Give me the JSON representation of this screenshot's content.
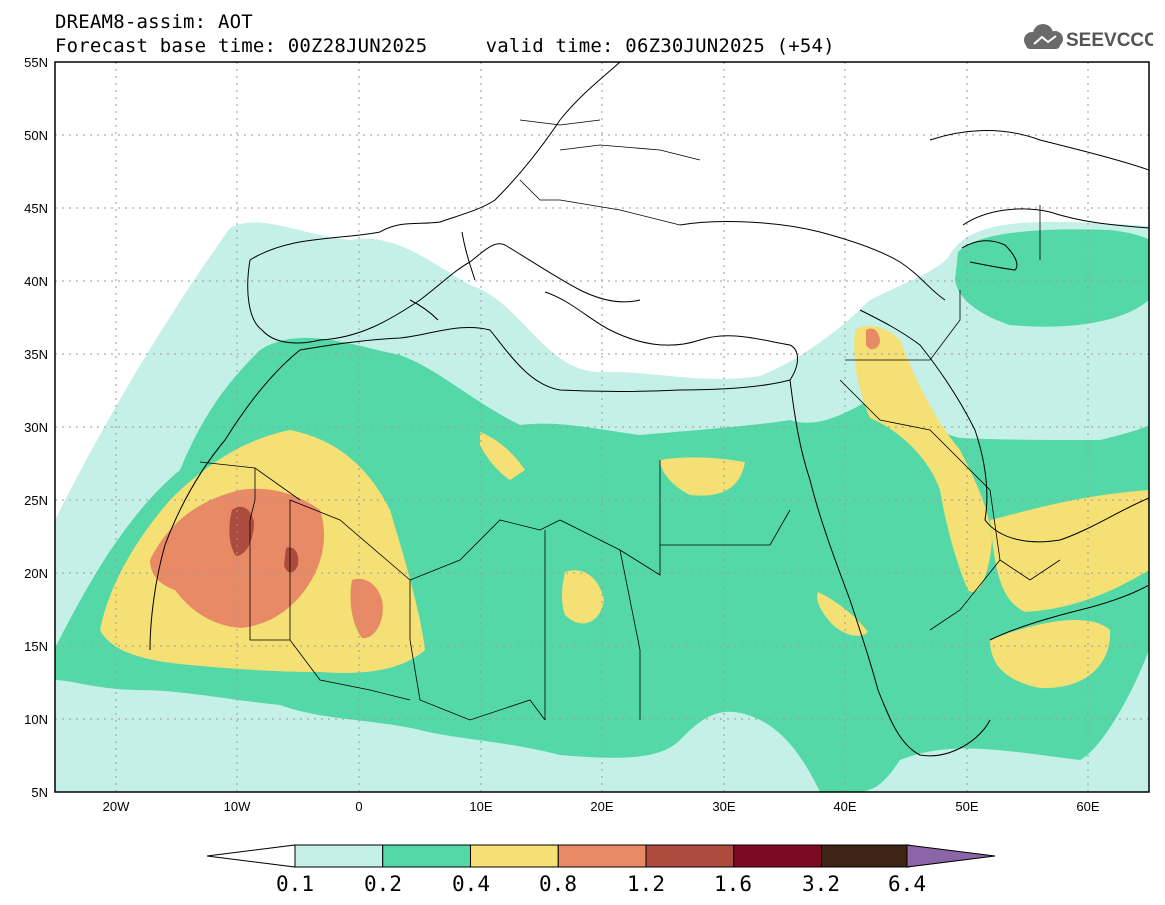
{
  "header": {
    "line1": "DREAM8-assim: AOT",
    "line2": "Forecast base time: 00Z28JUN2025     valid time: 06Z30JUN2025 (+54)",
    "logo_text": "SEEVCCC"
  },
  "map": {
    "lon_range": [
      -25,
      65
    ],
    "lat_range": [
      5,
      55
    ],
    "lat_ticks": [
      "55N",
      "50N",
      "45N",
      "40N",
      "35N",
      "30N",
      "25N",
      "20N",
      "15N",
      "10N",
      "5N"
    ],
    "lon_ticks": [
      "20W",
      "10W",
      "0",
      "10E",
      "20E",
      "30E",
      "40E",
      "50E",
      "60E"
    ]
  },
  "colorbar": {
    "labels": [
      "0.1",
      "0.2",
      "0.4",
      "0.8",
      "1.2",
      "1.6",
      "3.2",
      "6.4"
    ],
    "colors": [
      "#c4f0e8",
      "#54d8a8",
      "#f4e074",
      "#e88a66",
      "#ac4b3e",
      "#7c0a24",
      "#3e2414",
      "#8c64a8"
    ]
  },
  "colors": {
    "level_01": "#c4f0e8",
    "level_02": "#54d8a8",
    "level_04": "#f4e074",
    "level_08": "#e88a66",
    "level_12": "#ac4b3e",
    "level_16": "#7c0a24",
    "grid": "#9a9a9a"
  }
}
